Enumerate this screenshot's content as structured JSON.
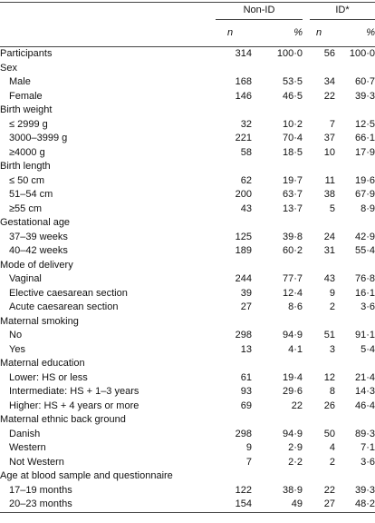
{
  "table": {
    "groups": [
      "Non-ID",
      "ID*"
    ],
    "subheaders": [
      "n",
      "%",
      "n",
      "%"
    ],
    "total": {
      "label": "Participants",
      "values": [
        "314",
        "100·0",
        "56",
        "100·0"
      ]
    },
    "sections": [
      {
        "title": "Sex",
        "rows": [
          {
            "label": "Male",
            "values": [
              "168",
              "53·5",
              "34",
              "60·7"
            ]
          },
          {
            "label": "Female",
            "values": [
              "146",
              "46·5",
              "22",
              "39·3"
            ]
          }
        ]
      },
      {
        "title": "Birth weight",
        "rows": [
          {
            "label": "≤ 2999 g",
            "values": [
              "32",
              "10·2",
              "7",
              "12·5"
            ]
          },
          {
            "label": "3000–3999 g",
            "values": [
              "221",
              "70·4",
              "37",
              "66·1"
            ]
          },
          {
            "label": "≥4000 g",
            "values": [
              "58",
              "18·5",
              "10",
              "17·9"
            ]
          }
        ]
      },
      {
        "title": "Birth length",
        "rows": [
          {
            "label": "≤ 50 cm",
            "values": [
              "62",
              "19·7",
              "11",
              "19·6"
            ]
          },
          {
            "label": "51–54 cm",
            "values": [
              "200",
              "63·7",
              "38",
              "67·9"
            ]
          },
          {
            "label": "≥55 cm",
            "values": [
              "43",
              "13·7",
              "5",
              "8·9"
            ]
          }
        ]
      },
      {
        "title": "Gestational age",
        "rows": [
          {
            "label": "37–39 weeks",
            "values": [
              "125",
              "39·8",
              "24",
              "42·9"
            ]
          },
          {
            "label": "40–42 weeks",
            "values": [
              "189",
              "60·2",
              "31",
              "55·4"
            ]
          }
        ]
      },
      {
        "title": "Mode of delivery",
        "rows": [
          {
            "label": "Vaginal",
            "values": [
              "244",
              "77·7",
              "43",
              "76·8"
            ]
          },
          {
            "label": "Elective caesarean section",
            "values": [
              "39",
              "12·4",
              "9",
              "16·1"
            ]
          },
          {
            "label": "Acute caesarean section",
            "values": [
              "27",
              "8·6",
              "2",
              "3·6"
            ]
          }
        ]
      },
      {
        "title": "Maternal smoking",
        "rows": [
          {
            "label": "No",
            "values": [
              "298",
              "94·9",
              "51",
              "91·1"
            ]
          },
          {
            "label": "Yes",
            "values": [
              "13",
              "4·1",
              "3",
              "5·4"
            ]
          }
        ]
      },
      {
        "title": "Maternal education",
        "rows": [
          {
            "label": "Lower: HS or less",
            "values": [
              "61",
              "19·4",
              "12",
              "21·4"
            ]
          },
          {
            "label": "Intermediate: HS + 1–3 years",
            "values": [
              "93",
              "29·6",
              "8",
              "14·3"
            ]
          },
          {
            "label": "Higher: HS + 4 years or more",
            "values": [
              "69",
              "22",
              "26",
              "46·4"
            ]
          }
        ]
      },
      {
        "title": "Maternal ethnic back ground",
        "rows": [
          {
            "label": "Danish",
            "values": [
              "298",
              "94·9",
              "50",
              "89·3"
            ]
          },
          {
            "label": "Western",
            "values": [
              "9",
              "2·9",
              "4",
              "7·1"
            ]
          },
          {
            "label": "Not Western",
            "values": [
              "7",
              "2·2",
              "2",
              "3·6"
            ]
          }
        ]
      },
      {
        "title": "Age at blood sample and questionnaire",
        "rows": [
          {
            "label": "17–19 months",
            "values": [
              "122",
              "38·9",
              "22",
              "39·3"
            ]
          },
          {
            "label": "20–23 months",
            "values": [
              "154",
              "49",
              "27",
              "48·2"
            ]
          }
        ]
      }
    ]
  }
}
